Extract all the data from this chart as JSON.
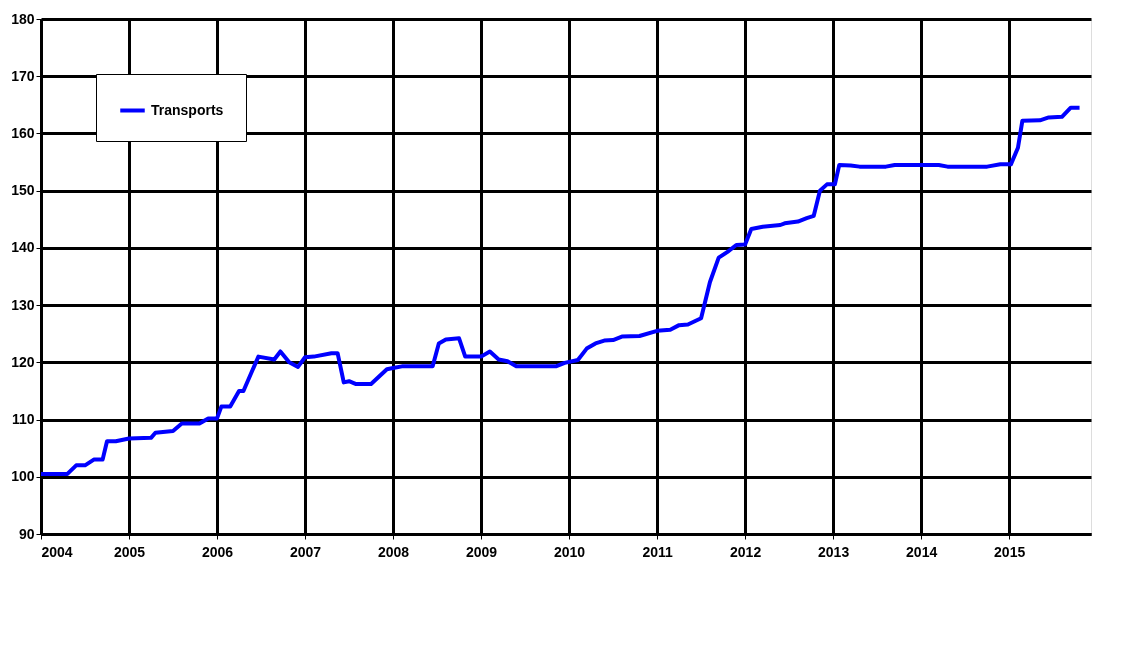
{
  "chart_data": {
    "type": "line",
    "legend": "top left",
    "grid": true,
    "marker": "none",
    "line_style": "solid",
    "xlim": [
      2004,
      2015.93
    ],
    "xticks": [
      2004,
      2005,
      2006,
      2007,
      2008,
      2009,
      2010,
      2011,
      2012,
      2013,
      2014,
      2015
    ],
    "ylim": [
      90,
      180
    ],
    "yticks": [
      90,
      100,
      110,
      120,
      130,
      140,
      150,
      160,
      170,
      180
    ],
    "x": [
      2004.0,
      2004.3,
      2004.4,
      2004.5,
      2004.6,
      2004.7,
      2004.75,
      2004.85,
      2005.0,
      2005.25,
      2005.3,
      2005.5,
      2005.6,
      2005.8,
      2005.9,
      2006.0,
      2006.05,
      2006.15,
      2006.25,
      2006.3,
      2006.47,
      2006.65,
      2006.72,
      2006.82,
      2006.92,
      2007.0,
      2007.1,
      2007.3,
      2007.37,
      2007.44,
      2007.5,
      2007.58,
      2007.75,
      2007.93,
      2008.0,
      2008.1,
      2008.45,
      2008.52,
      2008.6,
      2008.75,
      2008.82,
      2009.0,
      2009.1,
      2009.2,
      2009.3,
      2009.4,
      2009.85,
      2009.95,
      2010.1,
      2010.2,
      2010.3,
      2010.4,
      2010.5,
      2010.6,
      2010.8,
      2011.0,
      2011.15,
      2011.25,
      2011.35,
      2011.5,
      2011.6,
      2011.7,
      2011.8,
      2011.9,
      2012.0,
      2012.07,
      2012.2,
      2012.4,
      2012.45,
      2012.6,
      2012.7,
      2012.78,
      2012.85,
      2012.93,
      2013.02,
      2013.07,
      2013.2,
      2013.3,
      2013.6,
      2013.7,
      2014.2,
      2014.3,
      2014.75,
      2014.9,
      2015.02,
      2015.1,
      2015.15,
      2015.35,
      2015.45,
      2015.6,
      2015.7,
      2015.8
    ],
    "series": [
      {
        "name": "Transports",
        "color": "#0000ff",
        "values": [
          100.5,
          100.5,
          102,
          102,
          103,
          103,
          106.2,
          106.2,
          106.7,
          106.8,
          107.7,
          108,
          109.3,
          109.3,
          110.2,
          110.2,
          112.3,
          112.3,
          115,
          115,
          121,
          120.5,
          121.9,
          120,
          119.2,
          120.9,
          121,
          121.6,
          121.6,
          116.5,
          116.7,
          116.2,
          116.2,
          118.8,
          119,
          119.3,
          119.3,
          123.3,
          124,
          124.2,
          121,
          121,
          121.9,
          120.5,
          120.2,
          119.3,
          119.3,
          119.9,
          120.4,
          122.4,
          123.3,
          123.8,
          123.9,
          124.5,
          124.6,
          125.5,
          125.7,
          126.5,
          126.6,
          127.7,
          134,
          138.3,
          139.3,
          140.5,
          140.6,
          143.3,
          143.7,
          144,
          144.3,
          144.6,
          145.2,
          145.6,
          150,
          151.1,
          151.1,
          154.5,
          154.4,
          154.2,
          154.2,
          154.5,
          154.5,
          154.2,
          154.2,
          154.6,
          154.6,
          157.5,
          162.2,
          162.3,
          162.8,
          162.9,
          164.5,
          164.5
        ]
      }
    ]
  }
}
